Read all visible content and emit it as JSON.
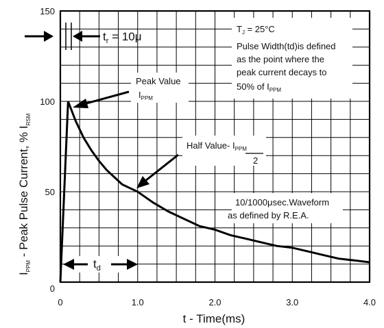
{
  "chart_data": {
    "type": "line",
    "xlabel": "t - Time(ms)",
    "ylabel_main": "I",
    "ylabel_main_sub": "PPM",
    "ylabel_rest": " - Peak Pulse Current, % I",
    "ylabel_rest_sub": "RSM",
    "xlim": [
      0,
      4.0
    ],
    "ylim": [
      0,
      150
    ],
    "x_ticks": [
      {
        "value": 0,
        "label": "0"
      },
      {
        "value": 1.0,
        "label": "1.0"
      },
      {
        "value": 2.0,
        "label": "2.0"
      },
      {
        "value": 3.0,
        "label": "3.0"
      },
      {
        "value": 4.0,
        "label": "4.0"
      }
    ],
    "y_ticks": [
      {
        "value": 0,
        "label": "0"
      },
      {
        "value": 50,
        "label": "50"
      },
      {
        "value": 100,
        "label": "100"
      },
      {
        "value": 150,
        "label": "150"
      }
    ],
    "grid": true,
    "series": [
      {
        "x": [
          0.0,
          0.1,
          0.2,
          0.3,
          0.4,
          0.5,
          0.6,
          0.7,
          0.8,
          0.9,
          1.0,
          1.2,
          1.4,
          1.6,
          1.8,
          2.0,
          2.2,
          2.4,
          2.6,
          2.8,
          3.0,
          3.2,
          3.4,
          3.6,
          3.8,
          4.0
        ],
        "y": [
          0,
          100,
          89,
          80,
          73,
          67,
          62,
          58,
          54,
          52,
          50,
          44,
          39,
          35,
          31,
          29,
          26,
          24,
          22,
          20,
          19,
          17,
          15,
          13,
          12,
          11
        ]
      }
    ],
    "annotations": {
      "tr_label": "t",
      "tr_sub": "r",
      "tr_value": " = 10μ",
      "peak_line1": "Peak Value",
      "peak_line2": "I",
      "peak_line2_sub": "PPM",
      "half_prefix": "Half Value- I",
      "half_sub": "PPM",
      "half_denominator": "2",
      "tj_label": "T",
      "tj_sub": "J",
      "tj_value": " = 25°C",
      "pulse_lines": [
        "Pulse Width(td)is defined",
        "as the point where the",
        "peak current decays to"
      ],
      "pulse_last": "50% of I",
      "pulse_last_sub": "PPM",
      "waveform_lines": [
        "10/1000μsec.Waveform",
        "as defined by R.E.A."
      ],
      "td_label": "t",
      "td_sub": "d"
    }
  }
}
